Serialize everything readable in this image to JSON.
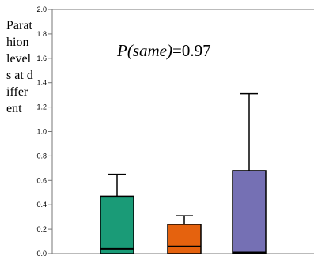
{
  "chart_data": {
    "type": "bar",
    "ylabel": "Parathion levels at different",
    "xlabel": "",
    "ylim": [
      0,
      2.0
    ],
    "yticks": [
      "0.0",
      "0.2",
      "0.4",
      "0.6",
      "0.8",
      "1.0",
      "1.2",
      "1.4",
      "1.6",
      "1.8",
      "2.0"
    ],
    "annotation": {
      "label": "P(same)",
      "value": "=0.97"
    },
    "categories": [
      "",
      "",
      ""
    ],
    "values": [
      0.47,
      0.24,
      0.68
    ],
    "error_upper": [
      0.65,
      0.31,
      1.31
    ],
    "inner_line": [
      0.04,
      0.06,
      0.01
    ],
    "colors": [
      "#1a9b77",
      "#e5620e",
      "#7570b4"
    ],
    "grid": false
  }
}
